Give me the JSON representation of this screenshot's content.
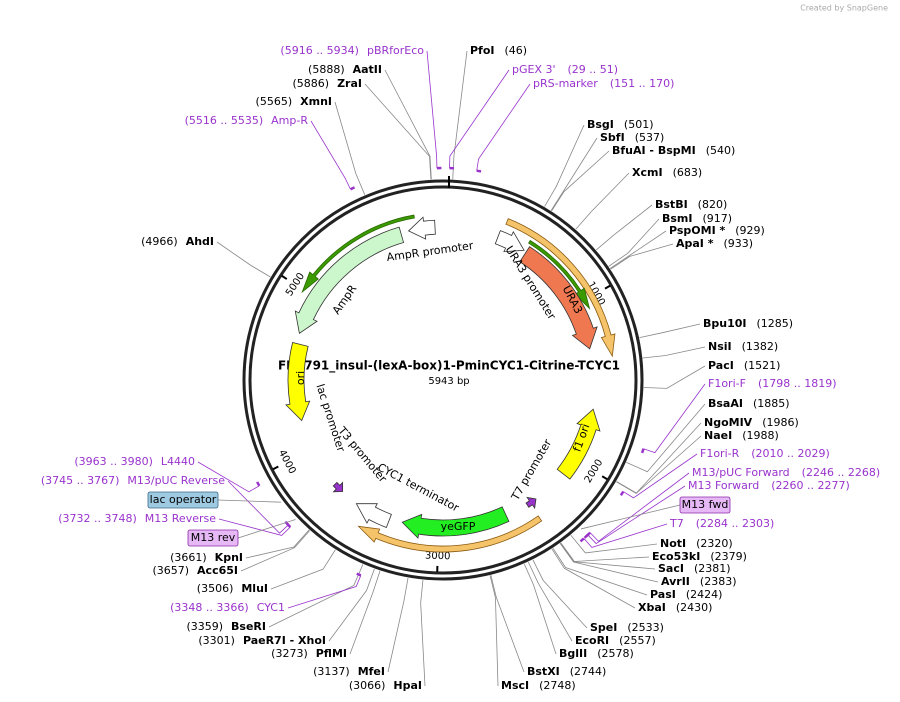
{
  "header": {
    "credit": "Created by SnapGene"
  },
  "plasmid": {
    "name": "FRP791_insul-(lexA-box)1-PminCYC1-Citrine-TCYC1",
    "length": "5943 bp"
  },
  "ring_ticks": [
    "1000",
    "2000",
    "3000",
    "4000",
    "5000"
  ],
  "features": [
    {
      "label": "AmpR promoter"
    },
    {
      "label": "AmpR"
    },
    {
      "label": "URA3 promoter"
    },
    {
      "label": "URA3"
    },
    {
      "label": "ori"
    },
    {
      "label": "lac promoter"
    },
    {
      "label": "T3 promoter"
    },
    {
      "label": "CYC1 terminator"
    },
    {
      "label": "yeGFP"
    },
    {
      "label": "T7 promoter"
    },
    {
      "label": "f1 ori"
    }
  ],
  "enzymes": [
    {
      "name": "PfoI",
      "site": "(46)"
    },
    {
      "name": "BsgI",
      "site": "(501)"
    },
    {
      "name": "SbfI",
      "site": "(537)"
    },
    {
      "name": "BfuAI - BspMI",
      "site": "(540)"
    },
    {
      "name": "XcmI",
      "site": "(683)"
    },
    {
      "name": "BstBI",
      "site": "(820)"
    },
    {
      "name": "BsmI",
      "site": "(917)"
    },
    {
      "name": "PspOMI *",
      "site": "(929)"
    },
    {
      "name": "ApaI *",
      "site": "(933)"
    },
    {
      "name": "Bpu10I",
      "site": "(1285)"
    },
    {
      "name": "NsiI",
      "site": "(1382)"
    },
    {
      "name": "PacI",
      "site": "(1521)"
    },
    {
      "name": "BsaAI",
      "site": "(1885)"
    },
    {
      "name": "NgoMIV",
      "site": "(1986)"
    },
    {
      "name": "NaeI",
      "site": "(1988)"
    },
    {
      "name": "NotI",
      "site": "(2320)"
    },
    {
      "name": "Eco53kI",
      "site": "(2379)"
    },
    {
      "name": "SacI",
      "site": "(2381)"
    },
    {
      "name": "AvrII",
      "site": "(2383)"
    },
    {
      "name": "PasI",
      "site": "(2424)"
    },
    {
      "name": "XbaI",
      "site": "(2430)"
    },
    {
      "name": "SpeI",
      "site": "(2533)"
    },
    {
      "name": "EcoRI",
      "site": "(2557)"
    },
    {
      "name": "BglII",
      "site": "(2578)"
    },
    {
      "name": "BstXI",
      "site": "(2744)"
    },
    {
      "name": "MscI",
      "site": "(2748)"
    },
    {
      "name": "HpaI",
      "site": "(3066)"
    },
    {
      "name": "MfeI",
      "site": "(3137)"
    },
    {
      "name": "PflMI",
      "site": "(3273)"
    },
    {
      "name": "PaeR7I - XhoI",
      "site": "(3301)"
    },
    {
      "name": "BseRI",
      "site": "(3359)"
    },
    {
      "name": "MluI",
      "site": "(3506)"
    },
    {
      "name": "Acc65I",
      "site": "(3657)"
    },
    {
      "name": "KpnI",
      "site": "(3661)"
    },
    {
      "name": "AhdI",
      "site": "(4966)"
    },
    {
      "name": "XmnI",
      "site": "(5565)"
    },
    {
      "name": "ZraI",
      "site": "(5886)"
    },
    {
      "name": "AatII",
      "site": "(5888)"
    }
  ],
  "primers": [
    {
      "label": "pGEX 3'",
      "range": "(29 .. 51)"
    },
    {
      "label": "pRS-marker",
      "range": "(151 .. 170)"
    },
    {
      "label": "F1ori-F",
      "range": "(1798 .. 1819)"
    },
    {
      "label": "F1ori-R",
      "range": "(2010 .. 2029)"
    },
    {
      "label": "M13/pUC Forward",
      "range": "(2246 .. 2268)"
    },
    {
      "label": "M13 Forward",
      "range": "(2260 .. 2277)"
    },
    {
      "label": "T7",
      "range": "(2284 .. 2303)"
    },
    {
      "label": "CYC1",
      "range": "(3348 .. 3366)"
    },
    {
      "label": "M13 Reverse",
      "range": "(3732 .. 3748)"
    },
    {
      "label": "M13/pUC Reverse",
      "range": "(3745 .. 3767)"
    },
    {
      "label": "L4440",
      "range": "(3963 .. 3980)"
    },
    {
      "label": "Amp-R",
      "range": "(5516 .. 5535)"
    },
    {
      "label": "pBRforEco",
      "range": "(5916 .. 5934)"
    }
  ],
  "tags": [
    {
      "label": "M13 fwd"
    },
    {
      "label": "lac operator"
    },
    {
      "label": "M13 rev"
    }
  ]
}
